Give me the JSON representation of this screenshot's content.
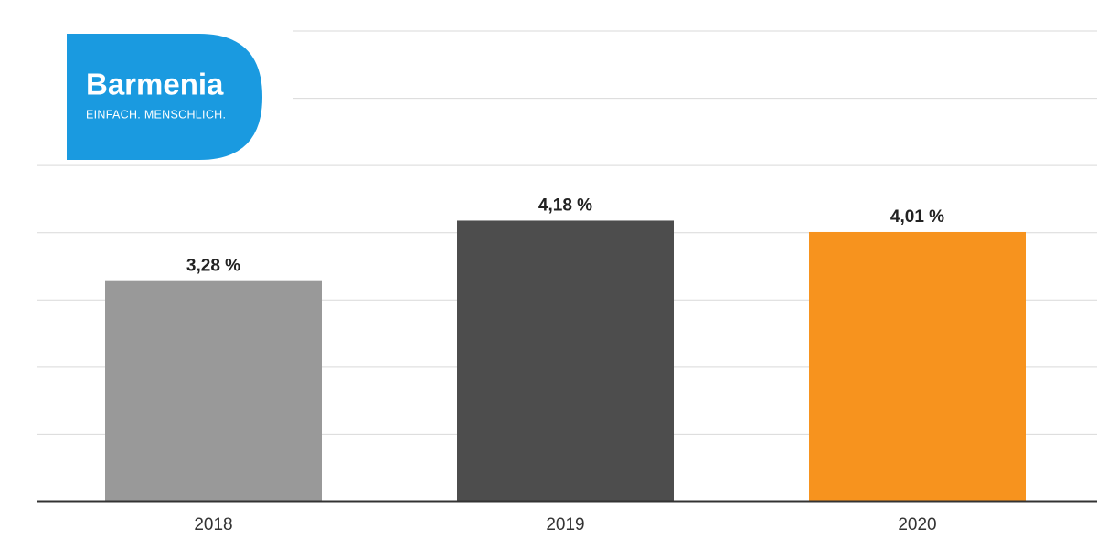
{
  "logo": {
    "name": "Barmenia",
    "tagline": "EINFACH. MENSCHLICH."
  },
  "chart_data": {
    "type": "bar",
    "categories": [
      "2018",
      "2019",
      "2020"
    ],
    "values": [
      3.28,
      4.18,
      4.01
    ],
    "value_labels": [
      "3,28 %",
      "4,18 %",
      "4,01 %"
    ],
    "colors": [
      "#999999",
      "#4d4d4d",
      "#f7931e"
    ],
    "ylim": [
      0,
      7
    ],
    "yticks": [
      0,
      1,
      2,
      3,
      4,
      5,
      6,
      7
    ],
    "grid": true
  }
}
